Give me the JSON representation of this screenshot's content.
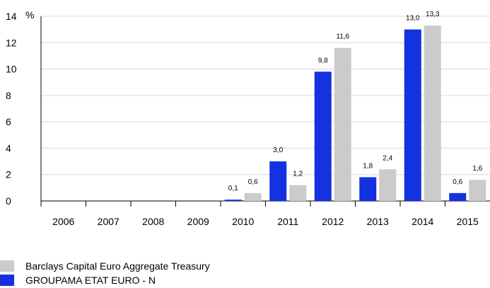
{
  "chart_data": {
    "type": "bar",
    "ylabel": "%",
    "ylim": [
      0,
      14
    ],
    "yticks": [
      "0",
      "2",
      "4",
      "6",
      "8",
      "10",
      "12",
      "14"
    ],
    "categories": [
      "2006",
      "2007",
      "2008",
      "2009",
      "2010",
      "2011",
      "2012",
      "2013",
      "2014",
      "2015"
    ],
    "series": [
      {
        "name": "GROUPAMA ETAT EURO - N",
        "color": "#1432e0",
        "values": [
          null,
          null,
          null,
          null,
          0.1,
          3.0,
          9.8,
          1.8,
          13.0,
          0.6
        ],
        "labels": [
          "",
          "",
          "",
          "",
          "0,1",
          "3,0",
          "9,8",
          "1,8",
          "13,0",
          "0,6"
        ]
      },
      {
        "name": "Barclays Capital Euro Aggregate Treasury",
        "color": "#cccaca",
        "values": [
          null,
          null,
          null,
          null,
          0.6,
          1.2,
          11.6,
          2.4,
          13.3,
          1.6
        ],
        "labels": [
          "",
          "",
          "",
          "",
          "0,6",
          "1,2",
          "11,6",
          "2,4",
          "13,3",
          "1,6"
        ]
      }
    ],
    "legend": [
      "Barclays Capital Euro Aggregate Treasury",
      "GROUPAMA ETAT EURO - N"
    ],
    "legend_position": "bottom-left",
    "grid": "horizontal"
  }
}
